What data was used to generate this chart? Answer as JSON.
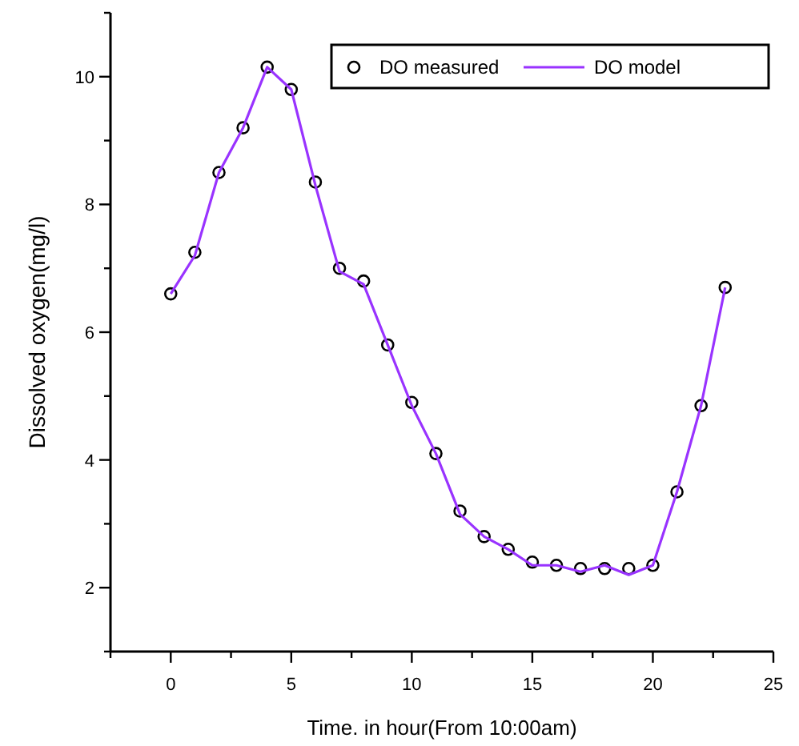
{
  "chart_data": {
    "type": "line",
    "xlabel": "Time. in hour(From 10:00am)",
    "ylabel": "Dissolved oxygen(mg/l)",
    "x": [
      0,
      1,
      2,
      3,
      4,
      5,
      6,
      7,
      8,
      9,
      10,
      11,
      12,
      13,
      14,
      15,
      16,
      17,
      18,
      19,
      20,
      21,
      22,
      23
    ],
    "xlim": [
      -2.5,
      25
    ],
    "xticks": [
      {
        "value": -2.5,
        "label": null
      },
      0,
      {
        "value": 2.5,
        "label": null
      },
      5,
      {
        "value": 7.5,
        "label": null
      },
      10,
      {
        "value": 12.5,
        "label": null
      },
      15,
      {
        "value": 17.5,
        "label": null
      },
      20,
      {
        "value": 22.5,
        "label": null
      },
      25
    ],
    "ylim": [
      1,
      11
    ],
    "yticks": [
      {
        "value": 1,
        "label": null
      },
      2,
      {
        "value": 3,
        "label": null
      },
      4,
      {
        "value": 5,
        "label": null
      },
      6,
      {
        "value": 7,
        "label": null
      },
      8,
      {
        "value": 9,
        "label": null
      },
      10,
      {
        "value": 11,
        "label": null
      }
    ],
    "grid": false,
    "legend": "top right",
    "series": [
      {
        "name": "DO measured",
        "type": "scatter",
        "marker": "circle",
        "color": "#000000",
        "values": [
          6.6,
          7.25,
          8.5,
          9.2,
          10.15,
          9.8,
          8.35,
          7.0,
          6.8,
          5.8,
          4.9,
          4.1,
          3.2,
          2.8,
          2.6,
          2.4,
          2.35,
          2.3,
          2.3,
          2.3,
          2.35,
          3.5,
          4.85,
          6.7
        ]
      },
      {
        "name": "DO model",
        "marker": "none",
        "line_style": "solid",
        "color": "#9933ff",
        "values": [
          6.6,
          7.2,
          8.5,
          9.2,
          10.15,
          9.8,
          8.3,
          6.95,
          6.75,
          5.8,
          4.85,
          4.1,
          3.15,
          2.8,
          2.6,
          2.35,
          2.35,
          2.25,
          2.35,
          2.2,
          2.35,
          3.5,
          4.85,
          6.7
        ]
      }
    ]
  }
}
